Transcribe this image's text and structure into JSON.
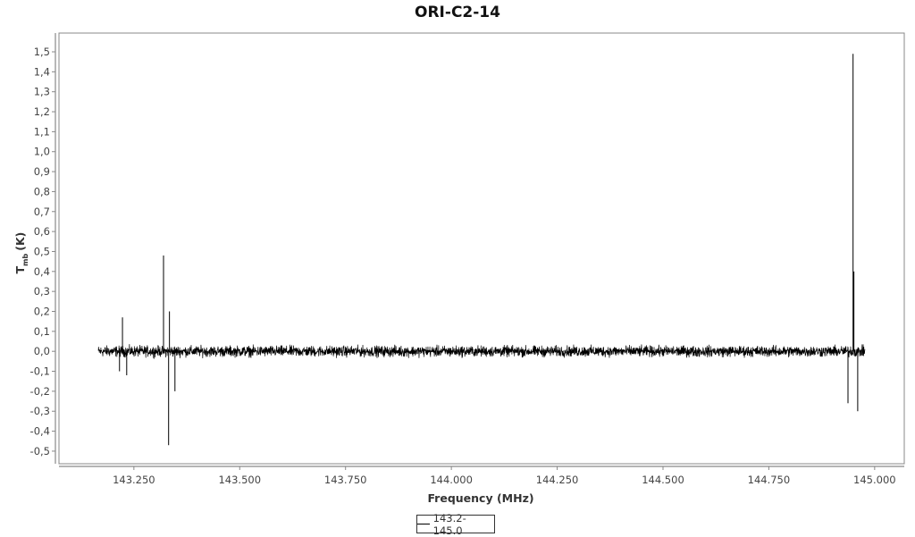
{
  "chart_data": {
    "type": "line",
    "title": "ORI-C2-14",
    "xlabel": "Frequency (MHz)",
    "ylabel": {
      "main": "T",
      "sub": "mb",
      "unit": "(K)"
    },
    "xlim": [
      143.073,
      145.07
    ],
    "ylim": [
      -0.563,
      1.594
    ],
    "x_ticks": [
      "143.250",
      "143.500",
      "143.750",
      "144.000",
      "144.250",
      "144.500",
      "144.750",
      "145.000"
    ],
    "x_tick_values": [
      143.25,
      143.5,
      143.75,
      144.0,
      144.25,
      144.5,
      144.75,
      145.0
    ],
    "y_ticks": [
      "1,5",
      "1,4",
      "1,3",
      "1,2",
      "1,1",
      "1,0",
      "0,9",
      "0,8",
      "0,7",
      "0,6",
      "0,5",
      "0,4",
      "0,3",
      "0,2",
      "0,1",
      "0,0",
      "-0,1",
      "-0,2",
      "-0,3",
      "-0,4",
      "-0,5"
    ],
    "y_tick_values": [
      1.5,
      1.4,
      1.3,
      1.2,
      1.1,
      1.0,
      0.9,
      0.8,
      0.7,
      0.6,
      0.5,
      0.4,
      0.3,
      0.2,
      0.1,
      0.0,
      -0.1,
      -0.2,
      -0.3,
      -0.4,
      -0.5
    ],
    "grid": false,
    "legend": {
      "placement": "bottom",
      "entries": [
        "143.2-145.0"
      ]
    },
    "series": [
      {
        "name": "143.2-145.0",
        "color": "#000000",
        "x_range": [
          143.166,
          144.977
        ],
        "baseline_noise_amplitude": 0.04,
        "spikes": [
          {
            "x": 143.216,
            "y": -0.1
          },
          {
            "x": 143.223,
            "y": 0.17
          },
          {
            "x": 143.233,
            "y": -0.12
          },
          {
            "x": 143.32,
            "y": 0.48
          },
          {
            "x": 143.332,
            "y": -0.47
          },
          {
            "x": 143.334,
            "y": 0.2
          },
          {
            "x": 143.347,
            "y": -0.2
          },
          {
            "x": 144.937,
            "y": -0.26
          },
          {
            "x": 144.949,
            "y": 1.49
          },
          {
            "x": 144.951,
            "y": 0.4
          },
          {
            "x": 144.96,
            "y": -0.3
          }
        ]
      }
    ]
  }
}
